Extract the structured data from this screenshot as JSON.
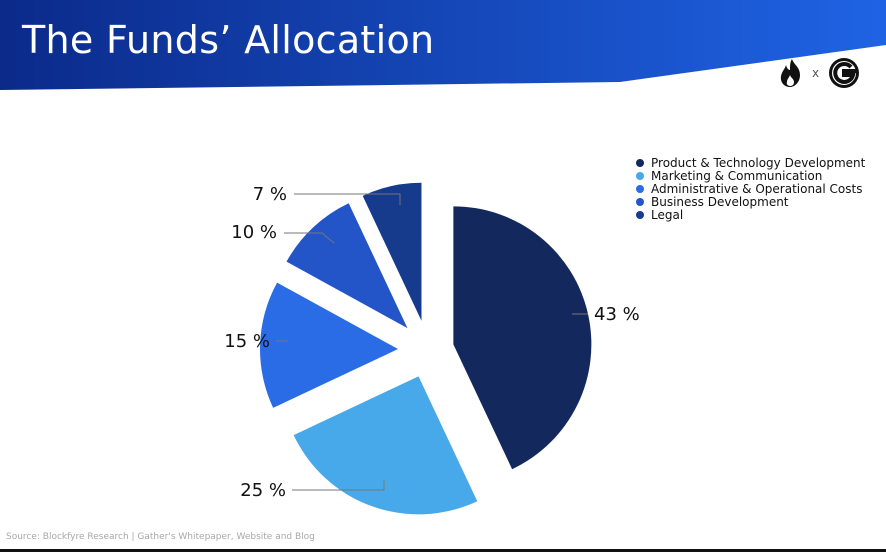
{
  "header": {
    "title": "The Funds’ Allocation",
    "band_color_left": "#0b2a8a",
    "band_color_right": "#1e5fe0"
  },
  "logos": {
    "left_icon": "fire-icon",
    "separator": "x",
    "right_icon": "gather-g-icon"
  },
  "chart_data": {
    "type": "pie",
    "categories": [
      "Product & Technology Development",
      "Marketing & Communication",
      "Administrative & Operational Costs",
      "Business Development",
      "Legal"
    ],
    "values": [
      43,
      25,
      15,
      10,
      7
    ],
    "labels": [
      "43 %",
      "25 %",
      "15 %",
      "10 %",
      "7 %"
    ],
    "colors": [
      "#13295e",
      "#47a9ea",
      "#2a6be6",
      "#2355c9",
      "#163a8c"
    ],
    "title": "",
    "legend_position": "top-right",
    "exploded": true
  },
  "footer": {
    "source": "Source: Blockfyre Research | Gather's Whitepaper, Website and Blog"
  }
}
